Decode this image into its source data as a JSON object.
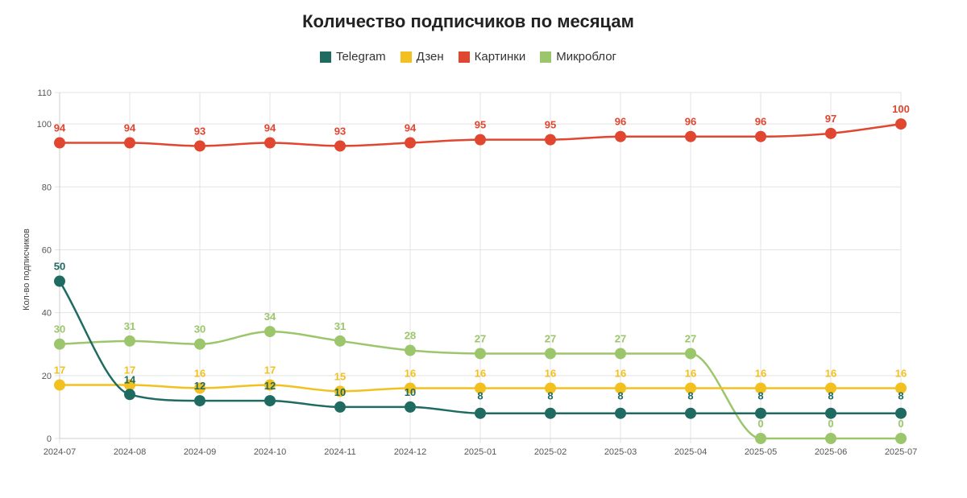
{
  "chart_data": {
    "type": "line",
    "title": "Количество подписчиков по месяцам",
    "xlabel": "",
    "ylabel": "Кол-во подписчиков",
    "ylim": [
      0,
      110
    ],
    "yticks": [
      0,
      20,
      40,
      60,
      80,
      100,
      110
    ],
    "grid": true,
    "legend_position": "top-center",
    "categories": [
      "2024-07",
      "2024-08",
      "2024-09",
      "2024-10",
      "2024-11",
      "2024-12",
      "2025-01",
      "2025-02",
      "2025-03",
      "2025-04",
      "2025-05",
      "2025-06",
      "2025-07"
    ],
    "series": [
      {
        "name": "Telegram",
        "color": "#1f6b62",
        "values": [
          50,
          14,
          12,
          12,
          10,
          10,
          8,
          8,
          8,
          8,
          8,
          8,
          8
        ]
      },
      {
        "name": "Дзен",
        "color": "#f2c11f",
        "values": [
          17,
          17,
          16,
          17,
          15,
          16,
          16,
          16,
          16,
          16,
          16,
          16,
          16
        ]
      },
      {
        "name": "Картинки",
        "color": "#e04630",
        "values": [
          94,
          94,
          93,
          94,
          93,
          94,
          95,
          95,
          96,
          96,
          96,
          97,
          100
        ]
      },
      {
        "name": "Микроблог",
        "color": "#9cc66b",
        "values": [
          30,
          31,
          30,
          34,
          31,
          28,
          27,
          27,
          27,
          27,
          0,
          0,
          0
        ]
      }
    ]
  }
}
